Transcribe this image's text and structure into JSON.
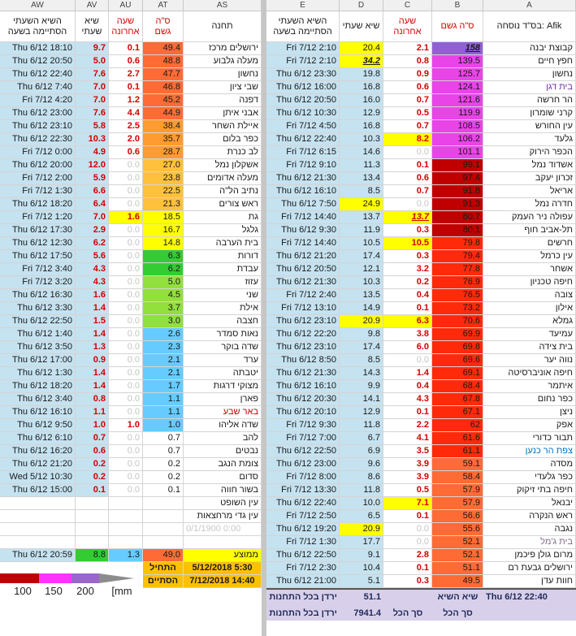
{
  "column_letters": [
    "AW",
    "AV",
    "AU",
    "AT",
    "AS",
    "E",
    "D",
    "C",
    "B",
    "A"
  ],
  "left_table": {
    "headers": [
      "השיא השעתי\nהסתיימה בשעה",
      "שיא\nשעתי",
      "שעה\nאחרונה",
      "ס\"ה\nגשם",
      "תחנה"
    ],
    "rows": [
      [
        "Thu 6/12 18:10",
        "9.7",
        "0.1",
        "49.4",
        "ירושלים מרכז"
      ],
      [
        "Thu 6/12 20:50",
        "5.0",
        "0.6",
        "48.8",
        "מעלה גלבוע"
      ],
      [
        "Thu 6/12 22:40",
        "7.6",
        "2.7",
        "47.7",
        "נחשון"
      ],
      [
        "Thu 6/12 7:40",
        "7.0",
        "0.1",
        "46.8",
        "שבי ציון"
      ],
      [
        "Fri 7/12 4:20",
        "7.0",
        "1.2",
        "45.2",
        "דפנה"
      ],
      [
        "Thu 6/12 23:00",
        "7.6",
        "4.4",
        "44.9",
        "אבני איתן"
      ],
      [
        "Thu 6/12 23:10",
        "5.8",
        "2.5",
        "38.4",
        "איילת השחר"
      ],
      [
        "Thu 6/12 22:30",
        "10.3",
        "2.0",
        "35.7",
        "כפר בלום"
      ],
      [
        "Fri 7/12 0:00",
        "4.9",
        "0.6",
        "28.7",
        "לב כנרת"
      ],
      [
        "Thu 6/12 20:00",
        "12.0",
        "0.0",
        "27.0",
        "אשקלון נמל"
      ],
      [
        "Fri 7/12 2:00",
        "5.9",
        "0.0",
        "23.8",
        "מעלה אדומים"
      ],
      [
        "Fri 7/12 1:30",
        "6.6",
        "0.0",
        "22.5",
        "נתיב הל\"ה"
      ],
      [
        "Thu 6/12 18:20",
        "6.4",
        "0.0",
        "21.3",
        "ראש צורים"
      ],
      [
        "Fri 7/12 1:20",
        "7.0",
        "1.6",
        "18.5",
        "גת"
      ],
      [
        "Thu 6/12 17:30",
        "2.9",
        "0.0",
        "16.7",
        "גלגל"
      ],
      [
        "Thu 6/12 12:30",
        "6.2",
        "0.0",
        "14.8",
        "בית הערבה"
      ],
      [
        "Thu 6/12 17:50",
        "5.6",
        "0.0",
        "6.3",
        "דורות"
      ],
      [
        "Fri 7/12 3:40",
        "4.3",
        "0.0",
        "6.2",
        "עבדת"
      ],
      [
        "Fri 7/12 3:20",
        "4.3",
        "0.0",
        "5.0",
        "עזוז"
      ],
      [
        "Thu 6/12 16:30",
        "1.6",
        "0.0",
        "4.5",
        "שני"
      ],
      [
        "Thu 6/12 3:30",
        "1.4",
        "0.0",
        "3.7",
        "אילת"
      ],
      [
        "Thu 6/12 22:50",
        "1.5",
        "0.0",
        "3.0",
        "חצבה"
      ],
      [
        "Thu 6/12 1:40",
        "1.4",
        "0.0",
        "2.6",
        "נאות סמדר"
      ],
      [
        "Thu 6/12 3:50",
        "1.3",
        "0.0",
        "2.3",
        "שדה בוקר"
      ],
      [
        "Thu 6/12 17:00",
        "0.9",
        "0.0",
        "2.1",
        "ערד"
      ],
      [
        "Thu 6/12 1:30",
        "1.4",
        "0.0",
        "2.1",
        "יטבתה"
      ],
      [
        "Thu 6/12 18:20",
        "1.4",
        "0.0",
        "1.7",
        "מצוקי דרגות"
      ],
      [
        "Thu 6/12 3:40",
        "0.8",
        "0.0",
        "1.1",
        "פארן"
      ],
      [
        "Thu 6/12 16:10",
        "1.1",
        "0.0",
        "1.1",
        "באר שבע"
      ],
      [
        "Thu 6/12 9:50",
        "1.0",
        "1.0",
        "1.0",
        "שדה אליהו"
      ],
      [
        "Thu 6/12 6:10",
        "0.7",
        "0.0",
        "0.7",
        "להב"
      ],
      [
        "Thu 6/12 16:20",
        "0.6",
        "0.0",
        "0.7",
        "נבטים"
      ],
      [
        "Thu 6/12 21:20",
        "0.2",
        "0.0",
        "0.2",
        "צומת הנגב"
      ],
      [
        "Wed 5/12 10:30",
        "0.2",
        "0.0",
        "0.2",
        "סדום"
      ],
      [
        "Thu 6/12 15:00",
        "0.1",
        "0.0",
        "0.1",
        "בשור חווה"
      ]
    ],
    "total_fills": [
      "#ff6b35",
      "#ff6b35",
      "#ff6b35",
      "#ff6b35",
      "#ff6b35",
      "#ff6b35",
      "#ff9b30",
      "#ff9b30",
      "#ff9b30",
      "#ffc13b",
      "#ffc13b",
      "#ffc13b",
      "#ffc13b",
      "#ffff00",
      "#ffff00",
      "#ffff00",
      "#33cc33",
      "#33cc33",
      "#92e03c",
      "#92e03c",
      "#92e03c",
      "#92e03c",
      "#66ccff",
      "#66ccff",
      "#66ccff",
      "#66ccff",
      "#66ccff",
      "#66ccff",
      "#66ccff",
      "#66ccff",
      null,
      null,
      null,
      null,
      null
    ],
    "cell_fills": [
      [
        13,
        2,
        "#ffff00"
      ]
    ],
    "text_colors": [
      [
        28,
        4,
        "#c00000"
      ]
    ],
    "extra_stations": [
      "עין השופט",
      "עין גדי מרחצאות"
    ],
    "empty_date": "0/1/1900 0:00",
    "average": {
      "time": "Thu 6/12 20:59",
      "peak": "8.8",
      "last": "1.3",
      "total": "49.0",
      "label": "ממוצע",
      "fills": [
        "#33cc33",
        "#66ccff",
        "#ff6b35",
        "#ffff00"
      ]
    },
    "started": {
      "label": "התחיל",
      "value": "5/12/2018 5:30"
    },
    "ended": {
      "label": "הסתיים",
      "value": "7/12/2018 14:40"
    },
    "period_fill": "#ffc000"
  },
  "right_table": {
    "headers": [
      "השיא השעתי\nהסתיימה בשעה",
      "שיא שעתי",
      "שעה\nאחרונה",
      "ס\"ה גשם",
      "בס\"ד נוסחה: Afik"
    ],
    "rows": [
      [
        "Fri 7/12 2:10",
        "20.4",
        "2.1",
        "158",
        "קבוצת יבנה"
      ],
      [
        "Fri 7/12 2:10",
        "34.2",
        "0.8",
        "139.5",
        "חפץ חיים"
      ],
      [
        "Thu 6/12 23:30",
        "19.8",
        "0.9",
        "125.7",
        "נחשון"
      ],
      [
        "Thu 6/12 16:00",
        "16.8",
        "0.6",
        "124.1",
        "בית דגן"
      ],
      [
        "Thu 6/12 20:50",
        "16.0",
        "0.7",
        "121.6",
        "הר חרשה"
      ],
      [
        "Thu 6/12 10:30",
        "12.9",
        "0.5",
        "119.9",
        "קרני שומרון"
      ],
      [
        "Fri 7/12 4:50",
        "16.8",
        "0.7",
        "108.5",
        "עין החורש"
      ],
      [
        "Thu 6/12 22:40",
        "10.3",
        "8.2",
        "106.2",
        "גלעד"
      ],
      [
        "Fri 7/12 6:15",
        "14.6",
        "0.0",
        "101.1",
        "הכפר הירוק"
      ],
      [
        "Fri 7/12 9:10",
        "11.3",
        "0.1",
        "99.1",
        "אשדוד נמל"
      ],
      [
        "Thu 6/12 21:30",
        "13.4",
        "0.6",
        "97.4",
        "זכרון יעקב"
      ],
      [
        "Thu 6/12 16:10",
        "8.5",
        "0.7",
        "91.8",
        "אריאל"
      ],
      [
        "Thu 6/12 7:50",
        "24.9",
        "0.0",
        "91.3",
        "חדרה נמל"
      ],
      [
        "Fri 7/12 14:40",
        "13.7",
        "13.7",
        "80.7",
        "עפולה ניר העמק"
      ],
      [
        "Thu 6/12 9:30",
        "11.9",
        "0.3",
        "80.1",
        "תל-אביב חוף"
      ],
      [
        "Fri 7/12 14:40",
        "10.5",
        "10.5",
        "79.8",
        "חרשים"
      ],
      [
        "Thu 6/12 21:20",
        "17.4",
        "0.3",
        "79.4",
        "עין כרמל"
      ],
      [
        "Thu 6/12 20:50",
        "12.1",
        "3.2",
        "77.8",
        "אשחר"
      ],
      [
        "Thu 6/12 21:30",
        "10.3",
        "0.2",
        "76.9",
        "חיפה טכניון"
      ],
      [
        "Fri 7/12 2:40",
        "13.5",
        "0.4",
        "76.5",
        "צובה"
      ],
      [
        "Fri 7/12 13:10",
        "14.9",
        "0.1",
        "73.2",
        "אילון"
      ],
      [
        "Thu 6/12 23:10",
        "20.9",
        "6.3",
        "70.6",
        "גמלא"
      ],
      [
        "Thu 6/12 22:20",
        "9.8",
        "3.8",
        "69.9",
        "עמיעד"
      ],
      [
        "Thu 6/12 23:10",
        "17.4",
        "6.0",
        "69.8",
        "בית צידה"
      ],
      [
        "Thu 6/12 8:50",
        "8.5",
        "0.0",
        "69.6",
        "נווה יער"
      ],
      [
        "Thu 6/12 21:30",
        "14.3",
        "1.4",
        "69.1",
        "חיפה אוניברסיטה"
      ],
      [
        "Thu 6/12 16:10",
        "9.9",
        "0.4",
        "68.4",
        "איתמר"
      ],
      [
        "Thu 6/12 20:30",
        "14.1",
        "4.3",
        "67.8",
        "כפר נחום"
      ],
      [
        "Thu 6/12 20:10",
        "12.9",
        "0.1",
        "67.1",
        "ניצן"
      ],
      [
        "Fri 7/12 9:30",
        "11.8",
        "2.2",
        "62",
        "אפק"
      ],
      [
        "Fri 7/12 7:00",
        "6.7",
        "4.1",
        "61.6",
        "תבור כדורי"
      ],
      [
        "Thu 6/12 22:50",
        "6.9",
        "3.5",
        "61.1",
        "צפת הר כנען"
      ],
      [
        "Thu 6/12 23:00",
        "9.6",
        "3.9",
        "59.1",
        "מסדה"
      ],
      [
        "Fri 7/12 8:00",
        "8.6",
        "3.9",
        "58.4",
        "כפר גלעדי"
      ],
      [
        "Fri 7/12 13:30",
        "11.8",
        "0.5",
        "57.9",
        "חיפה בתי זיקוק"
      ],
      [
        "Thu 6/12 22:40",
        "10.0",
        "7.1",
        "57.9",
        "יבנאל"
      ],
      [
        "Fri 7/12 2:50",
        "6.5",
        "0.1",
        "56.6",
        "ראש הנקרה"
      ],
      [
        "Thu 6/12 19:20",
        "20.9",
        "0.0",
        "55.6",
        "נגבה"
      ],
      [
        "Fri 7/12 1:30",
        "17.7",
        "0.0",
        "52.1",
        "בית ג'מל"
      ],
      [
        "Thu 6/12 22:50",
        "9.1",
        "2.8",
        "52.1",
        "מרום גולן פיכמן"
      ],
      [
        "Fri 7/12 2:30",
        "10.4",
        "0.1",
        "51.1",
        "ירושלים גבעת רם"
      ],
      [
        "Thu 6/12 21:00",
        "5.1",
        "0.3",
        "49.5",
        "חוות עדן"
      ]
    ],
    "total_fills": [
      "#9060d8",
      "#e844e8",
      "#e844e8",
      "#e844e8",
      "#e844e8",
      "#e844e8",
      "#e844e8",
      "#e844e8",
      "#e844e8",
      "#c00000",
      "#c00000",
      "#c00000",
      "#c00000",
      "#c00000",
      "#c00000",
      "#ff2a0a",
      "#ff2a0a",
      "#ff2a0a",
      "#ff2a0a",
      "#ff2a0a",
      "#ff2a0a",
      "#ff2a0a",
      "#ff2a0a",
      "#ff2a0a",
      "#ff2a0a",
      "#ff2a0a",
      "#ff2a0a",
      "#ff2a0a",
      "#ff2a0a",
      "#ff2a0a",
      "#ff2a0a",
      "#ff2a0a",
      "#ff6b35",
      "#ff6b35",
      "#ff6b35",
      "#ff6b35",
      "#ff6b35",
      "#ff6b35",
      "#ff6b35",
      "#ff6b35",
      "#ff6b35",
      "#ff6b35"
    ],
    "cell_fills": [
      [
        0,
        1,
        "#ffff00"
      ],
      [
        1,
        1,
        "#ffff00"
      ],
      [
        12,
        1,
        "#ffff00"
      ],
      [
        21,
        1,
        "#ffff00"
      ],
      [
        37,
        1,
        "#ffff00"
      ],
      [
        7,
        2,
        "#ffff00"
      ],
      [
        13,
        2,
        "#ffff00"
      ],
      [
        15,
        2,
        "#ffff00"
      ],
      [
        21,
        2,
        "#ffff00"
      ],
      [
        35,
        2,
        "#ffff00"
      ]
    ],
    "emphasis_cells": [
      [
        0,
        3
      ],
      [
        1,
        1
      ],
      [
        13,
        2
      ]
    ],
    "text_colors": [
      [
        3,
        4,
        "#7030a0"
      ],
      [
        31,
        4,
        "#0070c0"
      ],
      [
        38,
        4,
        "#7f6a8a"
      ]
    ],
    "summary": [
      {
        "label": "ירדן בכל התחנות יו",
        "value": "51.1",
        "caption": "שיא השיא",
        "time": "Thu 6/12 22:40"
      },
      {
        "label": "ירדן בכל התחנות יחד",
        "value": "7941.4",
        "caption": "סך הכל",
        "caption2": "סך הכל"
      }
    ],
    "summary_fill": "#d8d0ea"
  },
  "scale_legend": {
    "colors": [
      "#c00000",
      "#ff33ff",
      "#9966cc",
      "#8c8c8c"
    ],
    "labels": [
      "100",
      "150",
      "200",
      "[mm"
    ]
  }
}
